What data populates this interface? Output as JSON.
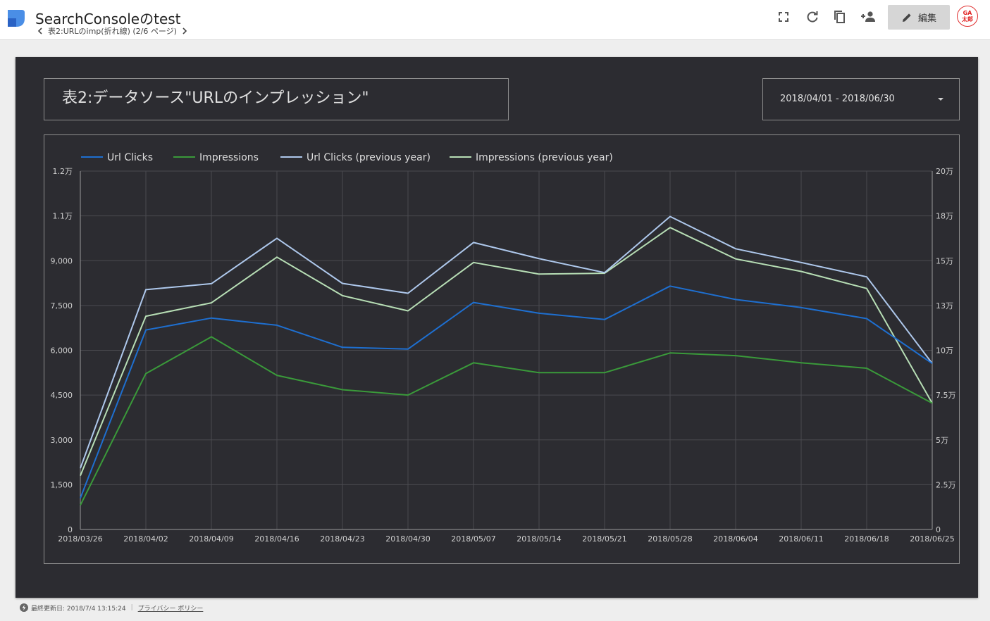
{
  "header": {
    "app_title": "SearchConsoleのtest",
    "page_label": "表2:URLのimp(折れ線) (2/6 ページ)",
    "edit_label": "編集",
    "avatar_line1": "GA",
    "avatar_line2": "太郎"
  },
  "toolbar_icons": [
    "fullscreen-icon",
    "refresh-icon",
    "copy-icon",
    "share-person-add-icon"
  ],
  "report": {
    "title": "表2:データソース\"URLのインプレッション\"",
    "date_range": "2018/04/01 - 2018/06/30"
  },
  "footer": {
    "updated": "最終更新日: 2018/7/4 13:15:24",
    "privacy_link": "プライバシー ポリシー"
  },
  "colors": {
    "background": "#2c2c31",
    "url_clicks": "#1e6fd0",
    "impressions": "#3a9a3a",
    "url_clicks_prev": "#aec8ec",
    "impressions_prev": "#b7deb5"
  },
  "chart_data": {
    "type": "line",
    "title": "",
    "legend_position": "top-left",
    "grid": true,
    "categories": [
      "2018/03/26",
      "2018/04/02",
      "2018/04/09",
      "2018/04/16",
      "2018/04/23",
      "2018/04/30",
      "2018/05/07",
      "2018/05/14",
      "2018/05/21",
      "2018/05/28",
      "2018/06/04",
      "2018/06/11",
      "2018/06/18",
      "2018/06/25"
    ],
    "left_axis": {
      "range": [
        0,
        12000
      ],
      "ticks": [
        0,
        1500,
        3000,
        4500,
        6000,
        7500,
        9000,
        10500,
        12000
      ],
      "tick_labels": [
        "0",
        "1,500",
        "3,000",
        "4,500",
        "6,000",
        "7,500",
        "9,000",
        "1.1万",
        "1.2万"
      ]
    },
    "right_axis": {
      "range": [
        0,
        200000
      ],
      "ticks": [
        0,
        25000,
        50000,
        75000,
        100000,
        125000,
        150000,
        175000,
        200000
      ],
      "tick_labels": [
        "0",
        "2.5万",
        "5万",
        "7.5万",
        "10万",
        "13万",
        "15万",
        "18万",
        "20万"
      ]
    },
    "series": [
      {
        "name": "Url Clicks",
        "axis": "left",
        "color": "#1e6fd0",
        "values": [
          1050,
          6680,
          7080,
          6840,
          6100,
          6040,
          7600,
          7240,
          7030,
          8150,
          7700,
          7430,
          7060,
          5560
        ]
      },
      {
        "name": "Impressions",
        "axis": "right",
        "color": "#3a9a3a",
        "values": [
          13500,
          87000,
          107500,
          86000,
          78000,
          75000,
          93000,
          87500,
          87500,
          98500,
          97000,
          93000,
          90000,
          70500
        ]
      },
      {
        "name": "Url Clicks (previous year)",
        "axis": "left",
        "color": "#aec8ec",
        "values": [
          2050,
          8030,
          8230,
          9750,
          8240,
          7910,
          9610,
          9070,
          8600,
          10480,
          9400,
          8940,
          8460,
          5560
        ]
      },
      {
        "name": "Impressions (previous year)",
        "axis": "right",
        "color": "#b7deb5",
        "values": [
          30000,
          119000,
          126500,
          152000,
          130500,
          122000,
          149000,
          142500,
          143000,
          168500,
          151000,
          144000,
          134500,
          70500
        ]
      }
    ]
  }
}
